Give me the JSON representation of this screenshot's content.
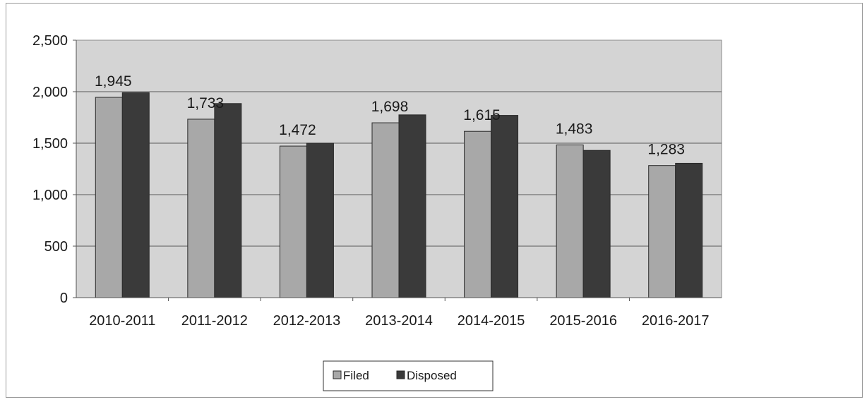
{
  "chart_data": {
    "type": "bar",
    "categories": [
      "2010-2011",
      "2011-2012",
      "2012-2013",
      "2013-2014",
      "2014-2015",
      "2015-2016",
      "2016-2017"
    ],
    "series": [
      {
        "name": "Filed",
        "values": [
          1945,
          1733,
          1472,
          1698,
          1615,
          1483,
          1283
        ],
        "color": "#a8a8a8"
      },
      {
        "name": "Disposed",
        "values": [
          1990,
          1885,
          1500,
          1775,
          1770,
          1430,
          1305
        ],
        "color": "#3a3a3a"
      }
    ],
    "data_labels": [
      "1,945",
      "1,733",
      "1,472",
      "1,698",
      "1,615",
      "1,483",
      "1,283"
    ],
    "yticks": [
      "0",
      "500",
      "1,000",
      "1,500",
      "2,000",
      "2,500"
    ],
    "ylim": [
      0,
      2500
    ],
    "grid": true,
    "plot_background": "#d4d4d4",
    "legend_position": "bottom"
  }
}
